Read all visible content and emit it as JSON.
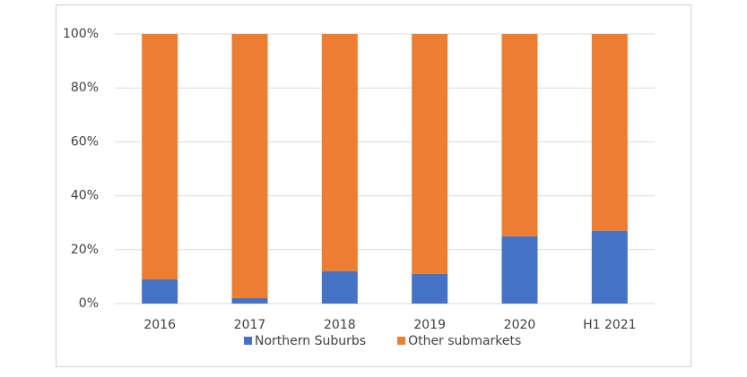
{
  "chart_data": {
    "type": "stacked_bar",
    "categories": [
      "2016",
      "2017",
      "2018",
      "2019",
      "2020",
      "H1 2021"
    ],
    "series": [
      {
        "name": "Northern Suburbs",
        "color": "#4472c4",
        "values": [
          9,
          2,
          12,
          11,
          25,
          27
        ]
      },
      {
        "name": "Other submarkets",
        "color": "#ed7d31",
        "values": [
          91,
          98,
          88,
          89,
          75,
          73
        ]
      }
    ],
    "ylim": [
      0,
      100
    ],
    "yticks": [
      {
        "value": 0,
        "label": "0%"
      },
      {
        "value": 20,
        "label": "20%"
      },
      {
        "value": 40,
        "label": "40%"
      },
      {
        "value": 60,
        "label": "60%"
      },
      {
        "value": 80,
        "label": "80%"
      },
      {
        "value": 100,
        "label": "100%"
      }
    ],
    "grid": true,
    "legend": "bottom"
  }
}
